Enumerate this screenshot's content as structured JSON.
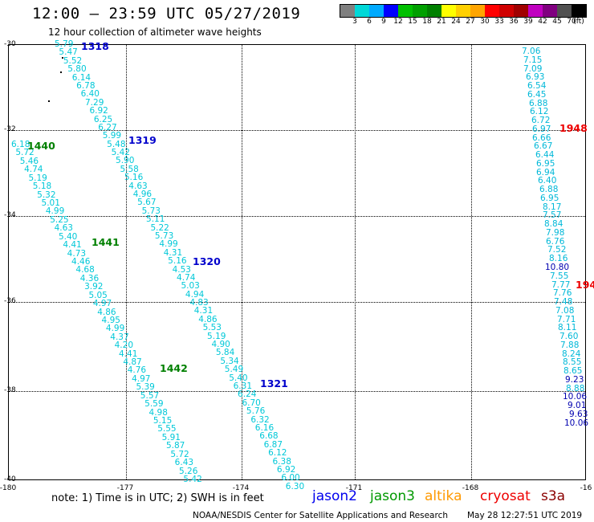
{
  "header": {
    "title": "12:00 – 23:59 UTC 05/27/2019",
    "subtitle": "12 hour collection of altimeter wave heights"
  },
  "legend": {
    "colors": [
      "#808080",
      "#00d8d8",
      "#00aaff",
      "#0000ff",
      "#00c000",
      "#00a000",
      "#008000",
      "#ffff00",
      "#ffd000",
      "#ffa500",
      "#ff0000",
      "#d00000",
      "#a00000",
      "#c000c0",
      "#800080",
      "#505050",
      "#000000"
    ],
    "labels": [
      "3",
      "6",
      "9",
      "12",
      "15",
      "18",
      "21",
      "24",
      "27",
      "30",
      "33",
      "36",
      "39",
      "42",
      "45",
      "70",
      "(ft)"
    ]
  },
  "axes": {
    "lat_labels": [
      "-30",
      "-32",
      "-34",
      "-36",
      "-38",
      "-40"
    ],
    "lon_labels": [
      "-180",
      "-177",
      "-174",
      "-171",
      "-168",
      "-16"
    ]
  },
  "orbits": [
    {
      "label": "1318",
      "color": "#0000cc"
    },
    {
      "label": "1319",
      "color": "#0000cc"
    },
    {
      "label": "1320",
      "color": "#0000cc"
    },
    {
      "label": "1321",
      "color": "#0000cc"
    },
    {
      "label": "1440",
      "color": "#008000"
    },
    {
      "label": "1441",
      "color": "#008000"
    },
    {
      "label": "1442",
      "color": "#008000"
    },
    {
      "label": "1948",
      "color": "#ee0000"
    },
    {
      "label": "194",
      "color": "#ee0000"
    }
  ],
  "tracks": {
    "track_a": [
      "5.79",
      "5.47",
      "5.52",
      "5.80",
      "6.14",
      "6.78",
      "6.40",
      "7.29",
      "6.92",
      "6.25",
      "6.27",
      "5.99",
      "5.48",
      "5.42",
      "5.90",
      "5.58",
      "5.16",
      "4.63",
      "4.96",
      "5.67",
      "5.73",
      "5.11",
      "5.22",
      "5.73",
      "4.99",
      "4.31",
      "5.16",
      "4.53",
      "4.74",
      "5.03",
      "4.94",
      "4.83",
      "4.31",
      "4.86",
      "5.53",
      "5.19",
      "4.90",
      "5.84",
      "5.34",
      "5.49",
      "5.40",
      "6.31",
      "6.24",
      "6.70",
      "5.76",
      "6.32",
      "6.16",
      "6.68",
      "6.87",
      "6.12",
      "6.38",
      "6.92",
      "6.00",
      "6.30"
    ],
    "track_b": [
      "6.18",
      "5.72",
      "5.46",
      "4.74",
      "5.19",
      "5.18",
      "5.32",
      "5.01",
      "4.99",
      "5.25",
      "4.63",
      "5.40",
      "4.41",
      "4.73",
      "4.46",
      "4.68",
      "4.36",
      "3.92",
      "5.05",
      "4.97",
      "4.86",
      "4.95",
      "4.99",
      "4.37",
      "4.20",
      "4.41",
      "4.87",
      "4.76",
      "4.97",
      "5.39",
      "5.57",
      "5.59",
      "4.98",
      "5.15",
      "5.55",
      "5.91",
      "5.87",
      "5.72",
      "6.43",
      "5.26",
      "5.42"
    ],
    "track_c": [
      "7.06",
      "7.15",
      "7.09",
      "6.93",
      "6.54",
      "6.45",
      "6.88",
      "6.12",
      "6.72",
      "6.97",
      "6.66",
      "6.67",
      "6.44",
      "6.95",
      "6.94",
      "6.40",
      "6.88",
      "6.95",
      "8.17",
      "7.57",
      "8.84",
      "7.98",
      "6.76",
      "7.52",
      "8.16",
      "10.80",
      "7.55",
      "7.77",
      "7.76",
      "7.48",
      "7.08",
      "7.71",
      "8.11",
      "7.60",
      "7.88",
      "8.24",
      "8.55",
      "8.65",
      "9.23",
      "8.88",
      "10.06",
      "9.01",
      "9.63",
      "10.06"
    ]
  },
  "footer": {
    "note": "note: 1) Time is in UTC; 2) SWH is in feet",
    "satellites": [
      {
        "name": "jason2",
        "color": "#0000ee"
      },
      {
        "name": "jason3",
        "color": "#009900"
      },
      {
        "name": "altika",
        "color": "#ff9900"
      },
      {
        "name": "cryosat",
        "color": "#ee0000"
      },
      {
        "name": "s3a",
        "color": "#8b0000"
      }
    ],
    "credit": "NOAA/NESDIS Center for Satellite Applications and Research",
    "timestamp": "May 28 12:27:51 UTC 2019"
  }
}
